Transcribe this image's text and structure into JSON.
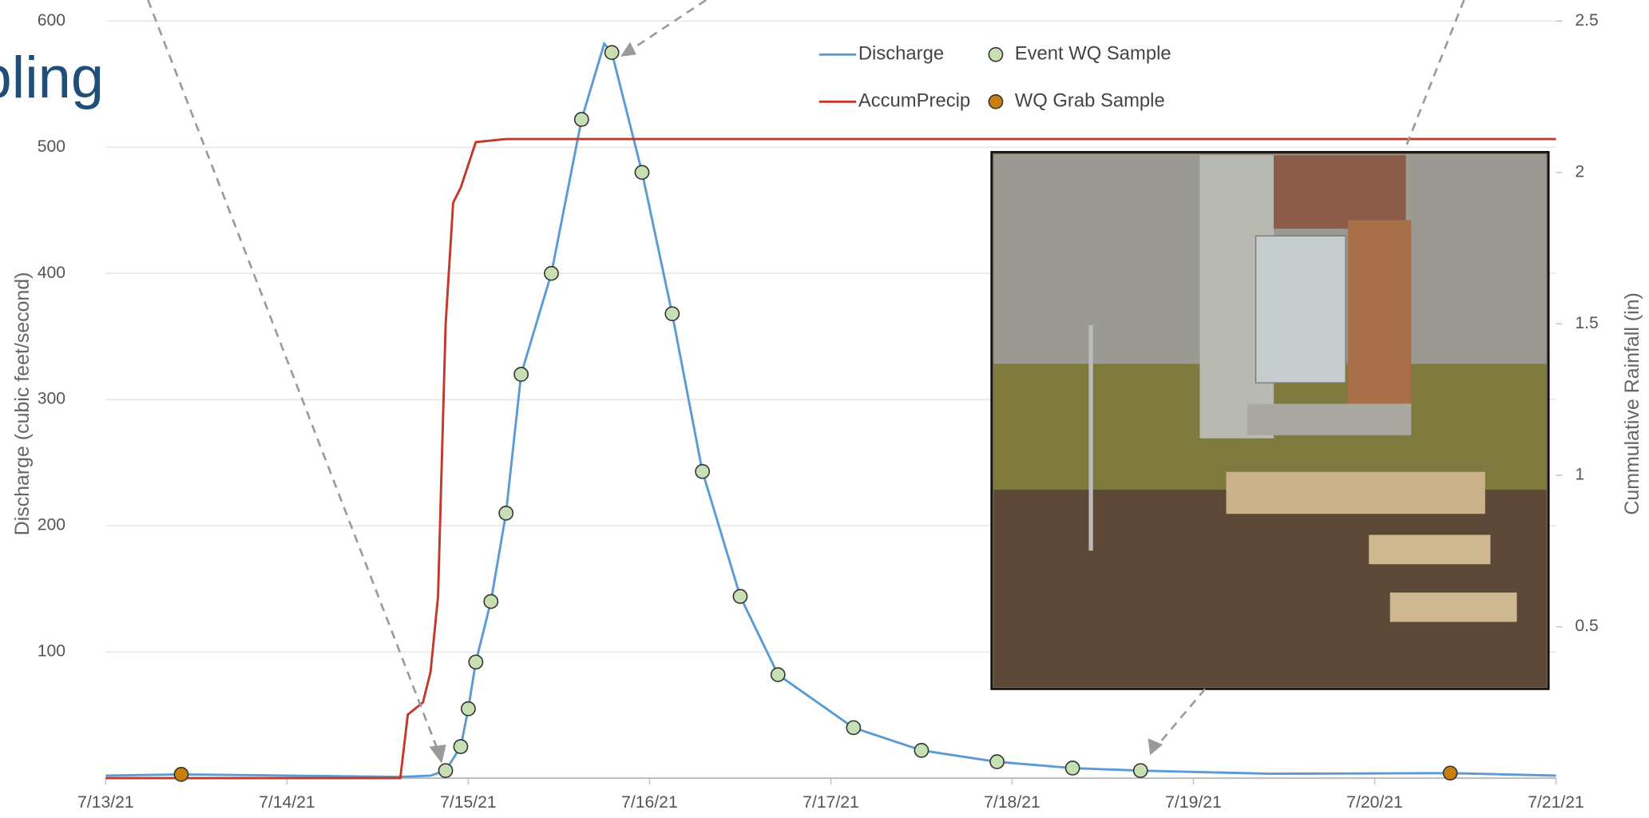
{
  "chart_data": {
    "type": "line",
    "title": "pling",
    "ylabel": "Discharge (cubic feet/second)",
    "y2label": "Cummulative Rainfall (in)",
    "xlim": [
      "2021-07-13T00:00",
      "2021-07-21T00:00"
    ],
    "xticks": [
      {
        "value": "2021-07-13T00:00",
        "label": "7/13/21"
      },
      {
        "value": "2021-07-14T00:00",
        "label": "7/14/21"
      },
      {
        "value": "2021-07-15T00:00",
        "label": "7/15/21"
      },
      {
        "value": "2021-07-16T00:00",
        "label": "7/16/21"
      },
      {
        "value": "2021-07-17T00:00",
        "label": "7/17/21"
      },
      {
        "value": "2021-07-18T00:00",
        "label": "7/18/21"
      },
      {
        "value": "2021-07-19T00:00",
        "label": "7/19/21"
      },
      {
        "value": "2021-07-20T00:00",
        "label": "7/20/21"
      },
      {
        "value": "2021-07-21T00:00",
        "label": "7/21/21"
      }
    ],
    "ylim": [
      0,
      600
    ],
    "yticks": [
      100,
      200,
      300,
      400,
      500,
      600
    ],
    "y2lim": [
      0,
      2.5
    ],
    "y2ticks": [
      0.5,
      1,
      1.5,
      2,
      2.5
    ],
    "grid": true,
    "legend": "top",
    "series": [
      {
        "name": "Discharge",
        "color": "#5b9bd5",
        "kind": "line",
        "x": [
          "2021-07-13T00:00",
          "2021-07-13T10:00",
          "2021-07-14T15:00",
          "2021-07-14T19:00",
          "2021-07-14T21:00",
          "2021-07-14T23:00",
          "2021-07-15T00:00",
          "2021-07-15T01:00",
          "2021-07-15T03:00",
          "2021-07-15T05:00",
          "2021-07-15T07:00",
          "2021-07-15T11:00",
          "2021-07-15T15:00",
          "2021-07-15T18:00",
          "2021-07-15T19:00",
          "2021-07-15T23:00",
          "2021-07-16T03:00",
          "2021-07-16T07:00",
          "2021-07-16T12:00",
          "2021-07-16T17:00",
          "2021-07-17T03:00",
          "2021-07-17T12:00",
          "2021-07-17T22:00",
          "2021-07-18T08:00",
          "2021-07-18T17:00",
          "2021-07-19T10:00",
          "2021-07-20T10:00",
          "2021-07-21T00:00"
        ],
        "values": [
          2,
          3,
          1,
          2,
          6,
          25,
          55,
          92,
          140,
          210,
          320,
          400,
          522,
          582,
          575,
          480,
          368,
          243,
          144,
          82,
          40,
          22,
          13,
          8,
          6,
          3.5,
          4,
          2
        ]
      },
      {
        "name": "AccumPrecip",
        "color": "#c0392b",
        "kind": "line",
        "axis": "y2",
        "x": [
          "2021-07-13T00:00",
          "2021-07-14T15:00",
          "2021-07-14T16:00",
          "2021-07-14T18:00",
          "2021-07-14T19:00",
          "2021-07-14T20:00",
          "2021-07-14T21:00",
          "2021-07-14T22:00",
          "2021-07-14T23:00",
          "2021-07-15T01:00",
          "2021-07-15T05:00",
          "2021-07-21T00:00"
        ],
        "values": [
          0,
          0,
          0.21,
          0.25,
          0.35,
          0.6,
          1.5,
          1.9,
          1.95,
          2.1,
          2.11,
          2.11
        ]
      },
      {
        "name": "Event WQ Sample",
        "color": "#c6e0b4",
        "kind": "scatter",
        "x": [
          "2021-07-14T21:00",
          "2021-07-14T23:00",
          "2021-07-15T00:00",
          "2021-07-15T01:00",
          "2021-07-15T03:00",
          "2021-07-15T05:00",
          "2021-07-15T07:00",
          "2021-07-15T11:00",
          "2021-07-15T15:00",
          "2021-07-15T19:00",
          "2021-07-15T23:00",
          "2021-07-16T03:00",
          "2021-07-16T07:00",
          "2021-07-16T12:00",
          "2021-07-16T17:00",
          "2021-07-17T03:00",
          "2021-07-17T12:00",
          "2021-07-17T22:00",
          "2021-07-18T08:00",
          "2021-07-18T17:00"
        ],
        "values": [
          6,
          25,
          55,
          92,
          140,
          210,
          320,
          400,
          522,
          575,
          480,
          368,
          243,
          144,
          82,
          40,
          22,
          13,
          8,
          6
        ]
      },
      {
        "name": "WQ Grab Sample",
        "color": "#c87f0a",
        "kind": "scatter",
        "x": [
          "2021-07-13T10:00",
          "2021-07-20T10:00"
        ],
        "values": [
          3,
          4
        ]
      }
    ]
  }
}
